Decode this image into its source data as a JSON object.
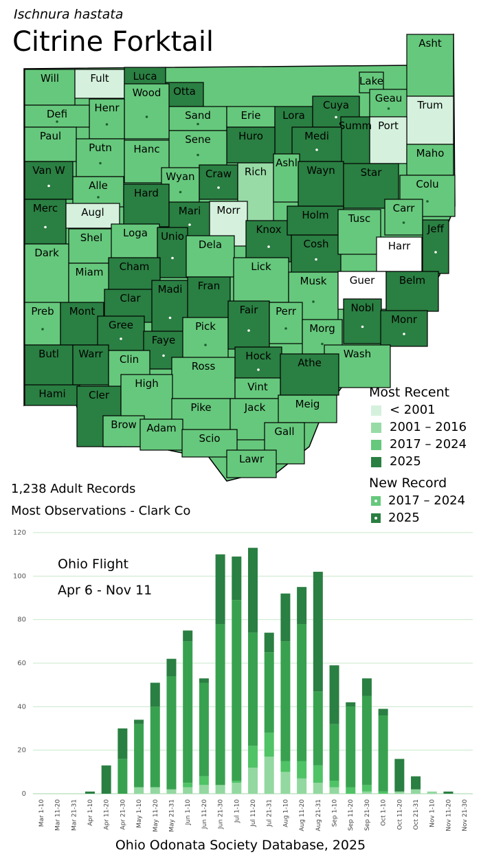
{
  "species": {
    "scientific_name": "Ischnura hastata",
    "common_name": "Citrine Forktail"
  },
  "colors": {
    "lt2001": "#d5f1dd",
    "y2001_2016": "#98dba6",
    "y2017_2024": "#66c87c",
    "y2025": "#2a7f42",
    "none": "#ffffff",
    "bar_dark": "#2a7f42",
    "bar_mid": "#38a14f",
    "bar_light1": "#4fc366",
    "bar_light2": "#93d8a0",
    "grid": "#c7e8c9"
  },
  "legend": {
    "most_recent_title": "Most Recent",
    "most_recent_items": [
      {
        "label": "< 2001",
        "key": "lt2001"
      },
      {
        "label": "2001 – 2016",
        "key": "y2001_2016"
      },
      {
        "label": "2017 – 2024",
        "key": "y2017_2024"
      },
      {
        "label": "2025",
        "key": "y2025"
      }
    ],
    "new_record_title": "New Record",
    "new_record_items": [
      {
        "label": "2017 – 2024",
        "key": "y2017_2024"
      },
      {
        "label": "2025",
        "key": "y2025"
      }
    ]
  },
  "stats": {
    "records": "1,238 Adult Records",
    "most_observations": "Most Observations - Clark Co"
  },
  "counties": [
    {
      "name": "Will",
      "cat": "y2017_2024",
      "nr": false
    },
    {
      "name": "Fult",
      "cat": "lt2001",
      "nr": false
    },
    {
      "name": "Luca",
      "cat": "y2025",
      "nr": false
    },
    {
      "name": "Otta",
      "cat": "y2025",
      "nr": false
    },
    {
      "name": "Sand",
      "cat": "y2017_2024",
      "nr": true
    },
    {
      "name": "Erie",
      "cat": "y2017_2024",
      "nr": false
    },
    {
      "name": "Lora",
      "cat": "y2025",
      "nr": false
    },
    {
      "name": "Cuya",
      "cat": "y2025",
      "nr": true
    },
    {
      "name": "Lake",
      "cat": "y2017_2024",
      "nr": false
    },
    {
      "name": "Geau",
      "cat": "y2017_2024",
      "nr": true
    },
    {
      "name": "Asht",
      "cat": "y2017_2024",
      "nr": false
    },
    {
      "name": "Trum",
      "cat": "lt2001",
      "nr": false
    },
    {
      "name": "Port",
      "cat": "lt2001",
      "nr": false
    },
    {
      "name": "Summ",
      "cat": "y2025",
      "nr": false
    },
    {
      "name": "Medi",
      "cat": "y2025",
      "nr": true
    },
    {
      "name": "Huro",
      "cat": "y2025",
      "nr": false
    },
    {
      "name": "Sene",
      "cat": "y2017_2024",
      "nr": true
    },
    {
      "name": "Wood",
      "cat": "y2017_2024",
      "nr": true
    },
    {
      "name": "Henr",
      "cat": "y2017_2024",
      "nr": true
    },
    {
      "name": "Defi",
      "cat": "y2017_2024",
      "nr": true
    },
    {
      "name": "Paul",
      "cat": "y2017_2024",
      "nr": false
    },
    {
      "name": "Putn",
      "cat": "y2017_2024",
      "nr": true
    },
    {
      "name": "Hanc",
      "cat": "y2017_2024",
      "nr": false
    },
    {
      "name": "Wyan",
      "cat": "y2017_2024",
      "nr": true
    },
    {
      "name": "Craw",
      "cat": "y2025",
      "nr": true
    },
    {
      "name": "Rich",
      "cat": "y2001_2016",
      "nr": false
    },
    {
      "name": "Ashl",
      "cat": "y2017_2024",
      "nr": false
    },
    {
      "name": "Wayn",
      "cat": "y2025",
      "nr": false
    },
    {
      "name": "Star",
      "cat": "y2025",
      "nr": false
    },
    {
      "name": "Maho",
      "cat": "y2017_2024",
      "nr": false
    },
    {
      "name": "Colu",
      "cat": "y2017_2024",
      "nr": true
    },
    {
      "name": "Van W",
      "cat": "y2025",
      "nr": true
    },
    {
      "name": "Alle",
      "cat": "y2017_2024",
      "nr": true
    },
    {
      "name": "Hard",
      "cat": "y2025",
      "nr": false
    },
    {
      "name": "Mari",
      "cat": "y2025",
      "nr": true
    },
    {
      "name": "Morr",
      "cat": "lt2001",
      "nr": false
    },
    {
      "name": "Knox",
      "cat": "y2025",
      "nr": true
    },
    {
      "name": "Holm",
      "cat": "y2025",
      "nr": false
    },
    {
      "name": "Carr",
      "cat": "y2017_2024",
      "nr": true
    },
    {
      "name": "Jeff",
      "cat": "y2025",
      "nr": true
    },
    {
      "name": "Merc",
      "cat": "y2025",
      "nr": true
    },
    {
      "name": "Augl",
      "cat": "lt2001",
      "nr": false
    },
    {
      "name": "Shel",
      "cat": "y2017_2024",
      "nr": false
    },
    {
      "name": "Loga",
      "cat": "y2017_2024",
      "nr": false
    },
    {
      "name": "Unio",
      "cat": "y2025",
      "nr": true
    },
    {
      "name": "Dela",
      "cat": "y2017_2024",
      "nr": false
    },
    {
      "name": "Lick",
      "cat": "y2017_2024",
      "nr": false
    },
    {
      "name": "Cosh",
      "cat": "y2025",
      "nr": true
    },
    {
      "name": "Tusc",
      "cat": "y2017_2024",
      "nr": false
    },
    {
      "name": "Harr",
      "cat": "none",
      "nr": false
    },
    {
      "name": "Dark",
      "cat": "y2017_2024",
      "nr": false
    },
    {
      "name": "Miam",
      "cat": "y2017_2024",
      "nr": false
    },
    {
      "name": "Cham",
      "cat": "y2025",
      "nr": false
    },
    {
      "name": "Clar",
      "cat": "y2025",
      "nr": false
    },
    {
      "name": "Madi",
      "cat": "y2025",
      "nr": true
    },
    {
      "name": "Fran",
      "cat": "y2025",
      "nr": false
    },
    {
      "name": "Musk",
      "cat": "y2017_2024",
      "nr": true
    },
    {
      "name": "Guer",
      "cat": "none",
      "nr": false
    },
    {
      "name": "Belm",
      "cat": "y2025",
      "nr": false
    },
    {
      "name": "Preb",
      "cat": "y2017_2024",
      "nr": true
    },
    {
      "name": "Mont",
      "cat": "y2025",
      "nr": false
    },
    {
      "name": "Gree",
      "cat": "y2025",
      "nr": true
    },
    {
      "name": "Faye",
      "cat": "y2025",
      "nr": true
    },
    {
      "name": "Pick",
      "cat": "y2017_2024",
      "nr": true
    },
    {
      "name": "Fair",
      "cat": "y2025",
      "nr": true
    },
    {
      "name": "Perr",
      "cat": "y2017_2024",
      "nr": true
    },
    {
      "name": "Morg",
      "cat": "y2017_2024",
      "nr": true
    },
    {
      "name": "Nobl",
      "cat": "y2025",
      "nr": true
    },
    {
      "name": "Monr",
      "cat": "y2025",
      "nr": true
    },
    {
      "name": "Wash",
      "cat": "y2017_2024",
      "nr": false
    },
    {
      "name": "Butl",
      "cat": "y2025",
      "nr": false
    },
    {
      "name": "Warr",
      "cat": "y2025",
      "nr": false
    },
    {
      "name": "Clin",
      "cat": "y2017_2024",
      "nr": true
    },
    {
      "name": "Ross",
      "cat": "y2017_2024",
      "nr": false
    },
    {
      "name": "Hock",
      "cat": "y2025",
      "nr": true
    },
    {
      "name": "Athe",
      "cat": "y2025",
      "nr": false
    },
    {
      "name": "Hami",
      "cat": "y2025",
      "nr": false
    },
    {
      "name": "Cler",
      "cat": "y2025",
      "nr": false
    },
    {
      "name": "High",
      "cat": "y2017_2024",
      "nr": false
    },
    {
      "name": "Pike",
      "cat": "y2017_2024",
      "nr": false
    },
    {
      "name": "Vint",
      "cat": "y2017_2024",
      "nr": false
    },
    {
      "name": "Jack",
      "cat": "y2017_2024",
      "nr": false
    },
    {
      "name": "Meig",
      "cat": "y2017_2024",
      "nr": false
    },
    {
      "name": "Brow",
      "cat": "y2017_2024",
      "nr": false
    },
    {
      "name": "Adam",
      "cat": "y2017_2024",
      "nr": false
    },
    {
      "name": "Scio",
      "cat": "y2017_2024",
      "nr": false
    },
    {
      "name": "Gall",
      "cat": "y2017_2024",
      "nr": false
    },
    {
      "name": "Lawr",
      "cat": "y2017_2024",
      "nr": false
    }
  ],
  "flight": {
    "title": "Ohio Flight",
    "range": "Apr 6 - Nov 11"
  },
  "source": "Ohio Odonata Society Database, 2025",
  "chart_data": {
    "type": "bar",
    "stacked": true,
    "title": "Ohio Flight",
    "xlabel": "",
    "ylabel": "",
    "ylim": [
      0,
      120
    ],
    "yticks": [
      0,
      20,
      40,
      60,
      80,
      100,
      120
    ],
    "categories": [
      "Mar 1-10",
      "Mar 11-20",
      "Mar 21-31",
      "Apr 1-10",
      "Apr 11-20",
      "Apr 21-30",
      "May 1-10",
      "May 11-20",
      "May 21-31",
      "Jun 1-10",
      "Jun 11-20",
      "Jun 21-30",
      "Jul 1-10",
      "Jul 11-20",
      "Jul 21-31",
      "Aug 1-10",
      "Aug 11-20",
      "Aug 21-31",
      "Sep 1-10",
      "Sep 11-20",
      "Sep 21-30",
      "Oct 1-10",
      "Oct 11-20",
      "Oct 21-31",
      "Nov 1-10",
      "Nov 11-20",
      "Nov 21-30"
    ],
    "series": [
      {
        "name": "light",
        "color_key": "bar_light2",
        "values": [
          0,
          0,
          0,
          0,
          0,
          0,
          3,
          3,
          2,
          3,
          4,
          4,
          5,
          12,
          17,
          10,
          7,
          5,
          3,
          0,
          1,
          0,
          1,
          2,
          1,
          0,
          0
        ]
      },
      {
        "name": "lighter-mid",
        "color_key": "bar_light1",
        "values": [
          0,
          0,
          0,
          0,
          0,
          0,
          0,
          0,
          0,
          2,
          4,
          0,
          1,
          10,
          11,
          5,
          8,
          8,
          3,
          3,
          3,
          1,
          0,
          0,
          0,
          0,
          0
        ]
      },
      {
        "name": "mid",
        "color_key": "bar_mid",
        "values": [
          0,
          0,
          0,
          0,
          0,
          16,
          29,
          37,
          52,
          65,
          43,
          74,
          83,
          52,
          37,
          55,
          63,
          34,
          26,
          37,
          41,
          35,
          0,
          0,
          0,
          0,
          0
        ]
      },
      {
        "name": "dark",
        "color_key": "bar_dark",
        "values": [
          0,
          0,
          0,
          1,
          13,
          14,
          2,
          11,
          8,
          5,
          2,
          32,
          20,
          39,
          9,
          22,
          17,
          55,
          27,
          2,
          8,
          3,
          15,
          6,
          0,
          1,
          0
        ]
      }
    ]
  }
}
